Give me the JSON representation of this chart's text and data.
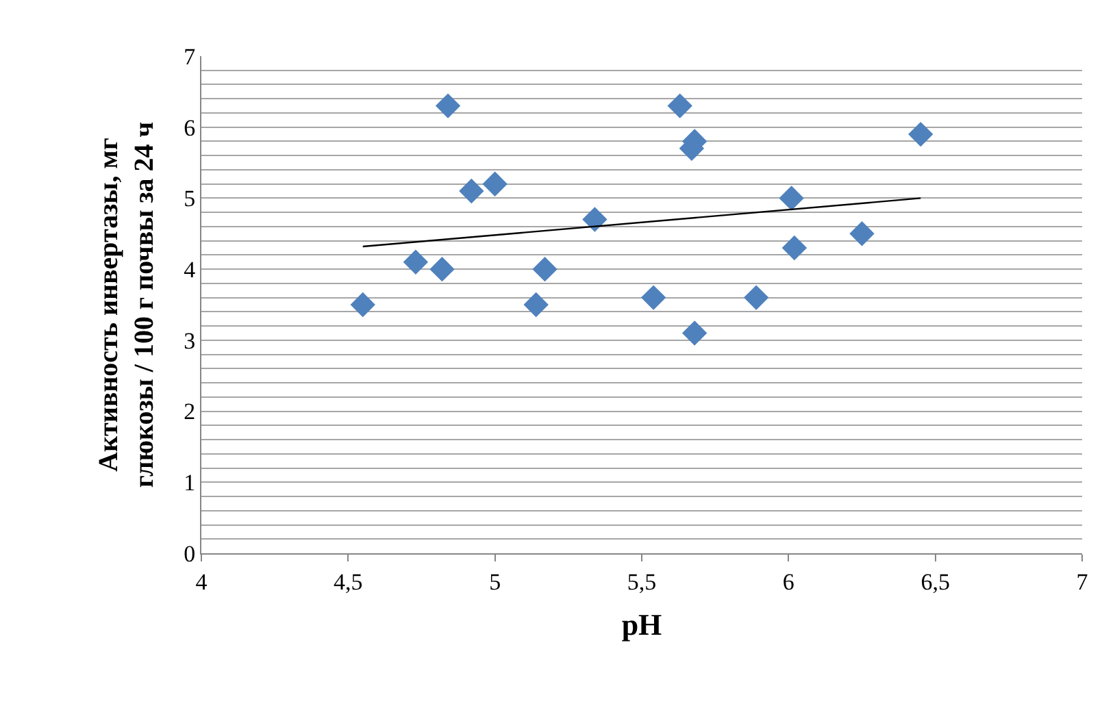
{
  "chart_data": {
    "type": "scatter",
    "xlabel": "pH",
    "ylabel": "Активность инвертазы, мг\nглюкозы / 100 г почвы за 24 ч",
    "series": [
      {
        "color": "#4f81bd",
        "marker": "diamond",
        "x": [
          4.55,
          4.73,
          4.82,
          4.84,
          4.92,
          5.0,
          5.14,
          5.17,
          5.34,
          5.54,
          5.63,
          5.67,
          5.68,
          5.68,
          5.89,
          6.01,
          6.02,
          6.25,
          6.45
        ],
        "values": [
          3.5,
          4.1,
          4.0,
          6.3,
          5.1,
          5.2,
          3.5,
          4.0,
          4.7,
          3.6,
          6.3,
          5.7,
          5.8,
          3.1,
          3.6,
          5.0,
          4.3,
          4.5,
          5.9
        ]
      },
      {
        "type": "line",
        "color": "#000000",
        "marker": "none",
        "x": [
          4.55,
          6.45
        ],
        "values": [
          4.32,
          5.0
        ]
      }
    ],
    "xlim": [
      4,
      7
    ],
    "xticks": [
      {
        "value": 4,
        "label": "4"
      },
      {
        "value": 4.5,
        "label": "4,5"
      },
      {
        "value": 5,
        "label": "5"
      },
      {
        "value": 5.5,
        "label": "5,5"
      },
      {
        "value": 6,
        "label": "6"
      },
      {
        "value": 6.5,
        "label": "6,5"
      },
      {
        "value": 7,
        "label": "7"
      }
    ],
    "ylim": [
      0,
      7
    ],
    "yticks": [
      0,
      {
        "value": 0.2,
        "label": null
      },
      {
        "value": 0.4,
        "label": null
      },
      {
        "value": 0.6,
        "label": null
      },
      {
        "value": 0.8,
        "label": null
      },
      1,
      {
        "value": 1.2,
        "label": null
      },
      {
        "value": 1.4,
        "label": null
      },
      {
        "value": 1.6,
        "label": null
      },
      {
        "value": 1.8,
        "label": null
      },
      2,
      {
        "value": 2.2,
        "label": null
      },
      {
        "value": 2.4,
        "label": null
      },
      {
        "value": 2.6,
        "label": null
      },
      {
        "value": 2.8,
        "label": null
      },
      3,
      {
        "value": 3.2,
        "label": null
      },
      {
        "value": 3.4,
        "label": null
      },
      {
        "value": 3.6,
        "label": null
      },
      {
        "value": 3.8,
        "label": null
      },
      4,
      {
        "value": 4.2,
        "label": null
      },
      {
        "value": 4.4,
        "label": null
      },
      {
        "value": 4.6,
        "label": null
      },
      {
        "value": 4.8,
        "label": null
      },
      5,
      {
        "value": 5.2,
        "label": null
      },
      {
        "value": 5.4,
        "label": null
      },
      {
        "value": 5.6,
        "label": null
      },
      {
        "value": 5.8,
        "label": null
      },
      6,
      {
        "value": 6.2,
        "label": null
      },
      {
        "value": 6.4,
        "label": null
      },
      {
        "value": 6.6,
        "label": null
      },
      {
        "value": 6.8,
        "label": null
      },
      7
    ],
    "grid": "y"
  }
}
